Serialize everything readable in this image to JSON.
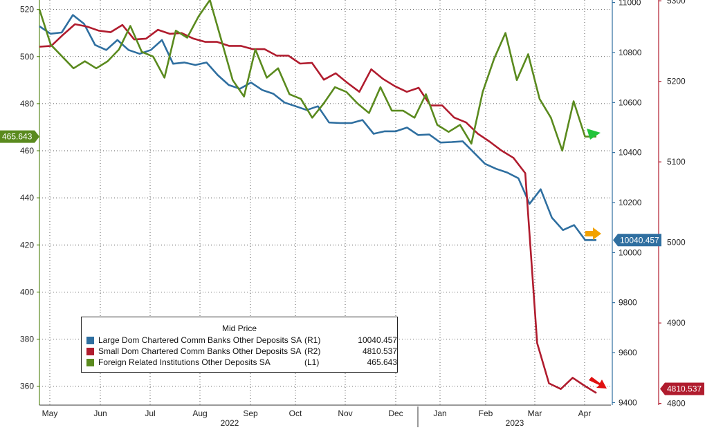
{
  "chart_data": {
    "type": "line",
    "legend": {
      "title": "Mid Price",
      "placement": "bottom-left",
      "entries": [
        {
          "name": "Large Dom Chartered Comm Banks Other Deposits SA",
          "axis": "(R1)",
          "value": "10040.457",
          "color": "#2f6fa0"
        },
        {
          "name": "Small Dom Chartered Comm Banks Other Deposits SA",
          "axis": "(R2)",
          "value": "4810.537",
          "color": "#b01c2e"
        },
        {
          "name": "Foreign Related Institutions Other Deposits SA",
          "axis": "(L1)",
          "value": "465.643",
          "color": "#5a8a1e"
        }
      ]
    },
    "x_labels": [
      "May",
      "Jun",
      "Jul",
      "Aug",
      "Sep",
      "Oct",
      "Nov",
      "Dec",
      "Jan",
      "Feb",
      "Mar",
      "Apr"
    ],
    "year_labels": [
      "2022",
      "2023"
    ],
    "axes": {
      "L1": {
        "ylim": [
          352,
          524
        ],
        "ticks": [
          360,
          380,
          400,
          420,
          440,
          460,
          480,
          500,
          520
        ]
      },
      "R1": {
        "ylim": [
          9390,
          11010
        ],
        "ticks": [
          9400,
          9600,
          9800,
          10000,
          10200,
          10400,
          10600,
          10800,
          11000
        ]
      },
      "R2": {
        "ylim": [
          4798,
          5301
        ],
        "ticks": [
          4800,
          4900,
          5000,
          5100,
          5200,
          5300
        ]
      }
    },
    "grid": true,
    "series": [
      {
        "name": "Large Dom Chartered Comm Banks Other Deposits SA",
        "axis": "R1",
        "color": "#2f6fa0",
        "last_label": "10040.457",
        "values": [
          10905,
          10875,
          10880,
          10950,
          10915,
          10830,
          10810,
          10850,
          10810,
          10795,
          10810,
          10850,
          10755,
          10760,
          10750,
          10760,
          10710,
          10670,
          10655,
          10680,
          10650,
          10635,
          10600,
          10585,
          10570,
          10585,
          10520,
          10518,
          10518,
          10530,
          10475,
          10485,
          10485,
          10500,
          10470,
          10472,
          10440,
          10442,
          10445,
          10400,
          10355,
          10335,
          10320,
          10297,
          10195,
          10253,
          10140,
          10090,
          10110,
          10050,
          10050
        ]
      },
      {
        "name": "Small Dom Chartered Comm Banks Other Deposits SA",
        "axis": "R2",
        "color": "#b01c2e",
        "last_label": "4810.537",
        "values": [
          5243,
          5244,
          5258,
          5271,
          5268,
          5263,
          5261,
          5270,
          5252,
          5253,
          5264,
          5259,
          5260,
          5253,
          5249,
          5249,
          5244,
          5244,
          5240,
          5240,
          5232,
          5232,
          5222,
          5223,
          5202,
          5210,
          5198,
          5187,
          5215,
          5203,
          5194,
          5187,
          5192,
          5170,
          5170,
          5155,
          5149,
          5135,
          5125,
          5114,
          5105,
          5086,
          4875,
          4825,
          4818,
          4832,
          4822,
          4813
        ]
      },
      {
        "name": "Foreign Related Institutions Other Deposits SA",
        "axis": "L1",
        "color": "#5a8a1e",
        "last_label": "465.643",
        "values": [
          520,
          505,
          500,
          495,
          498,
          495,
          498,
          503,
          513,
          502,
          500,
          491,
          511,
          508,
          517,
          524,
          507,
          490,
          483,
          503,
          491,
          495,
          484,
          482,
          474,
          480,
          487,
          485,
          480,
          476,
          487,
          477,
          477,
          474,
          484,
          471,
          468,
          471,
          463,
          485,
          499,
          510,
          490,
          501,
          482,
          474,
          460,
          481,
          466,
          466
        ]
      }
    ],
    "arrows": [
      {
        "series": "Foreign Related Institutions Other Deposits SA",
        "direction": "down",
        "color": "#22c43a"
      },
      {
        "series": "Large Dom Chartered Comm Banks Other Deposits SA",
        "direction": "flat",
        "color": "#f2a200"
      },
      {
        "series": "Small Dom Chartered Comm Banks Other Deposits SA",
        "direction": "down",
        "color": "#e01010"
      }
    ]
  }
}
